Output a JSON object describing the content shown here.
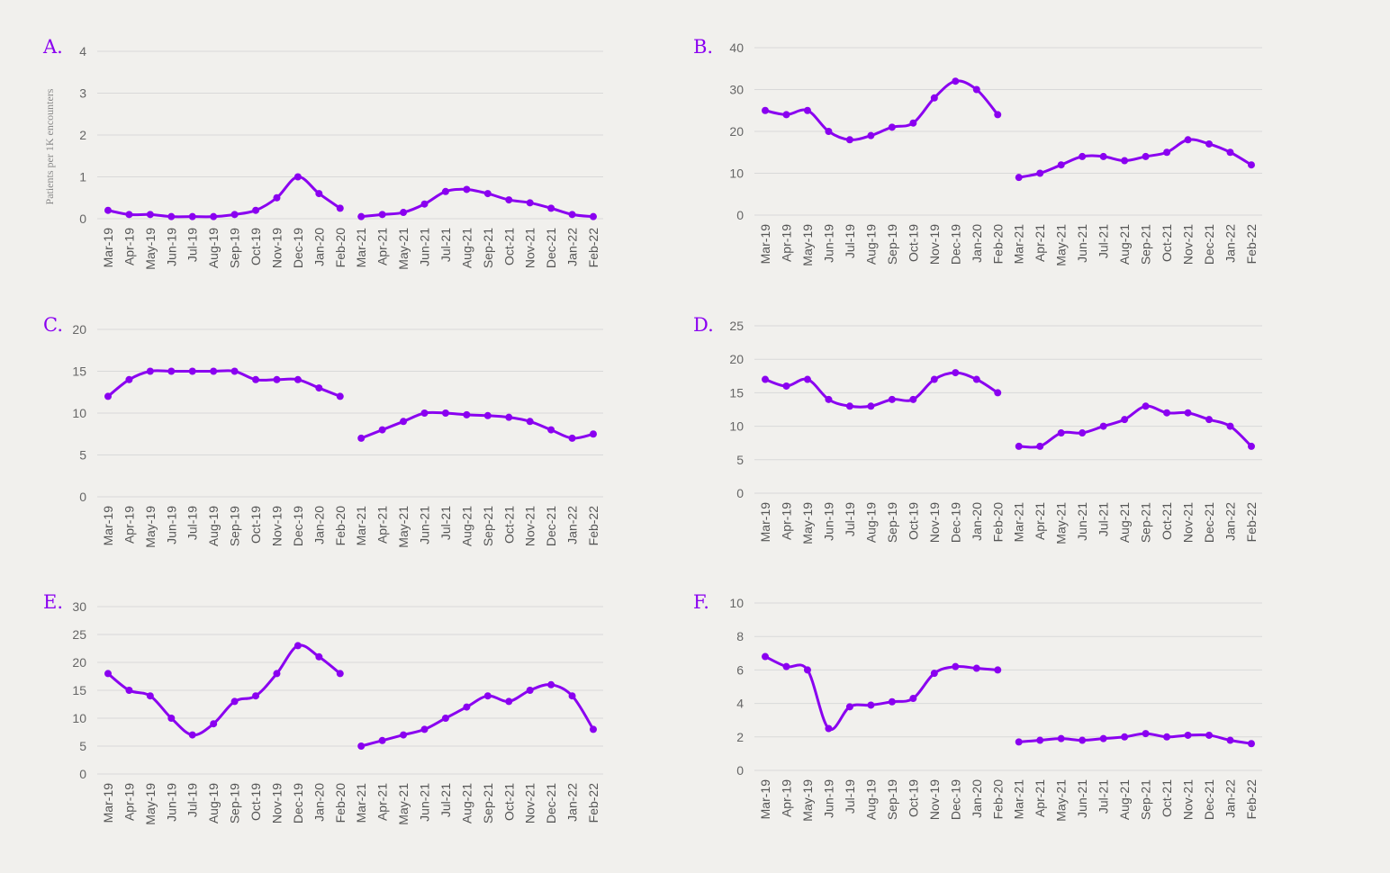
{
  "figure": {
    "line_color": "#8a00f0",
    "grid_color": "#d9d9d9",
    "label_color": "#8a00f0"
  },
  "chart_data": [
    {
      "panel": "A.",
      "type": "line",
      "ylabel": "Patients per 1K encounters",
      "ylim": [
        0,
        4
      ],
      "yticks": [
        0,
        1,
        2,
        3,
        4
      ],
      "grid": true,
      "x": [
        "Mar-19",
        "Apr-19",
        "May-19",
        "Jun-19",
        "Jul-19",
        "Aug-19",
        "Sep-19",
        "Oct-19",
        "Nov-19",
        "Dec-19",
        "Jan-20",
        "Feb-20",
        "Mar-21",
        "Apr-21",
        "May-21",
        "Jun-21",
        "Jul-21",
        "Aug-21",
        "Sep-21",
        "Oct-21",
        "Nov-21",
        "Dec-21",
        "Jan-22",
        "Feb-22"
      ],
      "segments": [
        [
          0.2,
          0.1,
          0.1,
          0.05,
          0.05,
          0.05,
          0.1,
          0.2,
          0.5,
          1.0,
          0.6,
          0.25
        ],
        [
          0.05,
          0.1,
          0.15,
          0.35,
          0.65,
          0.7,
          0.6,
          0.45,
          0.38,
          0.25,
          0.1,
          0.05
        ]
      ]
    },
    {
      "panel": "B.",
      "type": "line",
      "ylabel": "",
      "ylim": [
        0,
        40
      ],
      "yticks": [
        0,
        10,
        20,
        30,
        40
      ],
      "grid": true,
      "x": [
        "Mar-19",
        "Apr-19",
        "May-19",
        "Jun-19",
        "Jul-19",
        "Aug-19",
        "Sep-19",
        "Oct-19",
        "Nov-19",
        "Dec-19",
        "Jan-20",
        "Feb-20",
        "Mar-21",
        "Apr-21",
        "May-21",
        "Jun-21",
        "Jul-21",
        "Aug-21",
        "Sep-21",
        "Oct-21",
        "Nov-21",
        "Dec-21",
        "Jan-22",
        "Feb-22"
      ],
      "segments": [
        [
          25,
          24,
          25,
          20,
          18,
          19,
          21,
          22,
          28,
          32,
          30,
          24
        ],
        [
          9,
          10,
          12,
          14,
          14,
          13,
          14,
          15,
          18,
          17,
          15,
          12
        ]
      ]
    },
    {
      "panel": "C.",
      "type": "line",
      "ylabel": "",
      "ylim": [
        0,
        20
      ],
      "yticks": [
        0,
        5,
        10,
        15,
        20
      ],
      "grid": true,
      "x": [
        "Mar-19",
        "Apr-19",
        "May-19",
        "Jun-19",
        "Jul-19",
        "Aug-19",
        "Sep-19",
        "Oct-19",
        "Nov-19",
        "Dec-19",
        "Jan-20",
        "Feb-20",
        "Mar-21",
        "Apr-21",
        "May-21",
        "Jun-21",
        "Jul-21",
        "Aug-21",
        "Sep-21",
        "Oct-21",
        "Nov-21",
        "Dec-21",
        "Jan-22",
        "Feb-22"
      ],
      "segments": [
        [
          12,
          14,
          15,
          15,
          15,
          15,
          15,
          14,
          14,
          14,
          13,
          12
        ],
        [
          7,
          8,
          9,
          10,
          10,
          9.8,
          9.7,
          9.5,
          9,
          8,
          7,
          7.5
        ]
      ]
    },
    {
      "panel": "D.",
      "type": "line",
      "ylabel": "",
      "ylim": [
        0,
        25
      ],
      "yticks": [
        0,
        5,
        10,
        15,
        20,
        25
      ],
      "grid": true,
      "x": [
        "Mar-19",
        "Apr-19",
        "May-19",
        "Jun-19",
        "Jul-19",
        "Aug-19",
        "Sep-19",
        "Oct-19",
        "Nov-19",
        "Dec-19",
        "Jan-20",
        "Feb-20",
        "Mar-21",
        "Apr-21",
        "May-21",
        "Jun-21",
        "Jul-21",
        "Aug-21",
        "Sep-21",
        "Oct-21",
        "Nov-21",
        "Dec-21",
        "Jan-22",
        "Feb-22"
      ],
      "segments": [
        [
          17,
          16,
          17,
          14,
          13,
          13,
          14,
          14,
          17,
          18,
          17,
          15
        ],
        [
          7,
          7,
          9,
          9,
          10,
          11,
          13,
          12,
          12,
          11,
          10,
          7
        ]
      ]
    },
    {
      "panel": "E.",
      "type": "line",
      "ylabel": "",
      "ylim": [
        0,
        30
      ],
      "yticks": [
        0,
        5,
        10,
        15,
        20,
        25,
        30
      ],
      "grid": true,
      "x": [
        "Mar-19",
        "Apr-19",
        "May-19",
        "Jun-19",
        "Jul-19",
        "Aug-19",
        "Sep-19",
        "Oct-19",
        "Nov-19",
        "Dec-19",
        "Jan-20",
        "Feb-20",
        "Mar-21",
        "Apr-21",
        "May-21",
        "Jun-21",
        "Jul-21",
        "Aug-21",
        "Sep-21",
        "Oct-21",
        "Nov-21",
        "Dec-21",
        "Jan-22",
        "Feb-22"
      ],
      "segments": [
        [
          18,
          15,
          14,
          10,
          7,
          9,
          13,
          14,
          18,
          23,
          21,
          18
        ],
        [
          5,
          6,
          7,
          8,
          10,
          12,
          14,
          13,
          15,
          16,
          14,
          8
        ]
      ]
    },
    {
      "panel": "F.",
      "type": "line",
      "ylabel": "",
      "ylim": [
        0,
        10
      ],
      "yticks": [
        0,
        2,
        4,
        6,
        8,
        10
      ],
      "grid": true,
      "x": [
        "Mar-19",
        "Apr-19",
        "May-19",
        "Jun-19",
        "Jul-19",
        "Aug-19",
        "Sep-19",
        "Oct-19",
        "Nov-19",
        "Dec-19",
        "Jan-20",
        "Feb-20",
        "Mar-21",
        "Apr-21",
        "May-21",
        "Jun-21",
        "Jul-21",
        "Aug-21",
        "Sep-21",
        "Oct-21",
        "Nov-21",
        "Dec-21",
        "Jan-22",
        "Feb-22"
      ],
      "segments": [
        [
          6.8,
          6.2,
          6.0,
          2.5,
          3.8,
          3.9,
          4.1,
          4.3,
          5.8,
          6.2,
          6.1,
          6.0
        ],
        [
          1.7,
          1.8,
          1.9,
          1.8,
          1.9,
          2.0,
          2.2,
          2.0,
          2.1,
          2.1,
          1.8,
          1.6
        ]
      ]
    }
  ]
}
